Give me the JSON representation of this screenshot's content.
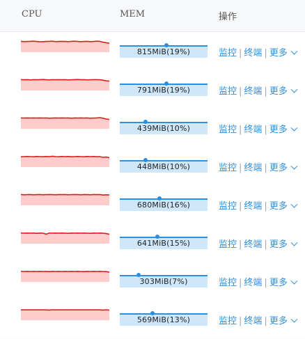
{
  "header": {
    "cpu": "CPU",
    "mem": "MEM",
    "actions": "操作"
  },
  "actions": {
    "monitor": "监控",
    "terminal": "终端",
    "more": "更多",
    "separator": "|"
  },
  "colors": {
    "cpu_line": "#e0191c",
    "cpu_fill": "#ffcccc",
    "mem_line": "#2b8fe0",
    "mem_fill": "#cfe7fb",
    "link": "#2f8fde"
  },
  "rows": [
    {
      "mem_label": "815MiB(19%)",
      "mem_percent": 19,
      "cpu_trace": [
        0.22,
        0.24,
        0.23,
        0.22,
        0.21,
        0.23,
        0.25,
        0.24,
        0.23,
        0.22,
        0.21,
        0.24,
        0.23,
        0.22,
        0.23,
        0.24,
        0.22,
        0.21,
        0.23,
        0.24,
        0.23,
        0.22,
        0.24,
        0.23,
        0.21,
        0.22,
        0.28,
        0.32,
        0.35
      ]
    },
    {
      "mem_label": "791MiB(19%)",
      "mem_percent": 19,
      "cpu_trace": [
        0.22,
        0.23,
        0.22,
        0.24,
        0.22,
        0.23,
        0.22,
        0.21,
        0.23,
        0.24,
        0.22,
        0.23,
        0.22,
        0.23,
        0.22,
        0.24,
        0.23,
        0.22,
        0.21,
        0.23,
        0.22,
        0.24,
        0.23,
        0.22,
        0.22,
        0.23,
        0.26,
        0.3,
        0.33
      ]
    },
    {
      "mem_label": "439MiB(10%)",
      "mem_percent": 10,
      "cpu_trace": [
        0.22,
        0.23,
        0.22,
        0.23,
        0.22,
        0.23,
        0.22,
        0.23,
        0.22,
        0.24,
        0.23,
        0.22,
        0.23,
        0.22,
        0.23,
        0.22,
        0.24,
        0.22,
        0.23,
        0.22,
        0.23,
        0.22,
        0.24,
        0.23,
        0.22,
        0.2,
        0.24,
        0.3,
        0.33
      ]
    },
    {
      "mem_label": "448MiB(10%)",
      "mem_percent": 10,
      "cpu_trace": [
        0.26,
        0.25,
        0.24,
        0.25,
        0.26,
        0.24,
        0.25,
        0.26,
        0.24,
        0.25,
        0.22,
        0.25,
        0.26,
        0.24,
        0.25,
        0.24,
        0.26,
        0.25,
        0.24,
        0.25,
        0.26,
        0.24,
        0.25,
        0.24,
        0.26,
        0.25,
        0.3,
        0.28,
        0.33
      ]
    },
    {
      "mem_label": "680MiB(16%)",
      "mem_percent": 16,
      "cpu_trace": [
        0.22,
        0.24,
        0.23,
        0.22,
        0.24,
        0.23,
        0.22,
        0.24,
        0.23,
        0.22,
        0.23,
        0.24,
        0.22,
        0.23,
        0.22,
        0.24,
        0.23,
        0.22,
        0.23,
        0.24,
        0.22,
        0.23,
        0.24,
        0.22,
        0.23,
        0.22,
        0.26,
        0.24,
        0.25
      ]
    },
    {
      "mem_label": "641MiB(15%)",
      "mem_percent": 15,
      "cpu_trace": [
        0.24,
        0.25,
        0.24,
        0.25,
        0.24,
        0.26,
        0.24,
        0.25,
        0.32,
        0.24,
        0.25,
        0.24,
        0.25,
        0.24,
        0.25,
        0.26,
        0.24,
        0.25,
        0.24,
        0.25,
        0.24,
        0.25,
        0.26,
        0.24,
        0.25,
        0.24,
        0.25,
        0.28,
        0.32
      ]
    },
    {
      "mem_label": "303MiB(7%)",
      "mem_percent": 7,
      "cpu_trace": [
        0.24,
        0.25,
        0.24,
        0.25,
        0.24,
        0.25,
        0.24,
        0.25,
        0.24,
        0.26,
        0.24,
        0.25,
        0.24,
        0.25,
        0.24,
        0.25,
        0.24,
        0.25,
        0.24,
        0.25,
        0.26,
        0.24,
        0.25,
        0.24,
        0.25,
        0.24,
        0.25,
        0.26,
        0.3
      ]
    },
    {
      "mem_label": "569MiB(13%)",
      "mem_percent": 13,
      "cpu_trace": [
        0.26,
        0.25,
        0.26,
        0.25,
        0.26,
        0.25,
        0.26,
        0.25,
        0.26,
        0.27,
        0.25,
        0.26,
        0.25,
        0.26,
        0.25,
        0.26,
        0.25,
        0.26,
        0.25,
        0.26,
        0.25,
        0.26,
        0.25,
        0.26,
        0.25,
        0.26,
        0.27,
        0.25,
        0.28
      ]
    }
  ]
}
